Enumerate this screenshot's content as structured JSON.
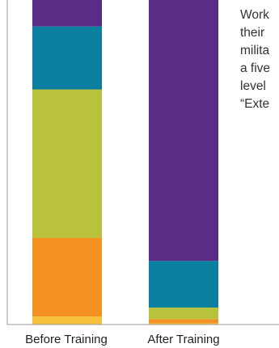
{
  "colors": {
    "axis": "#9a9a9a",
    "background": "#ffffff",
    "segments": [
      "#F7C13C",
      "#F39222",
      "#B8C23A",
      "#0B7FA0",
      "#5B2C86"
    ]
  },
  "note_lines": [
    "Work",
    "their",
    "milita",
    "a five",
    "level",
    "“Exte"
  ],
  "chart_data": {
    "type": "bar",
    "stacked": true,
    "orientation": "vertical",
    "categories": [
      "Before Training",
      "After Training"
    ],
    "series": [
      {
        "color": "#F7C13C",
        "values": [
          2.5,
          0.4
        ]
      },
      {
        "color": "#F39222",
        "values": [
          24.6,
          1.3
        ]
      },
      {
        "color": "#B8C23A",
        "values": [
          46.4,
          3.6
        ]
      },
      {
        "color": "#0B7FA0",
        "values": [
          19.7,
          14.6
        ]
      },
      {
        "color": "#5B2C86",
        "values": [
          12.5,
          85.6
        ]
      }
    ],
    "ylim": [
      0,
      105
    ],
    "grid": false,
    "legend": "none",
    "title": "",
    "xlabel": "",
    "ylabel": ""
  }
}
